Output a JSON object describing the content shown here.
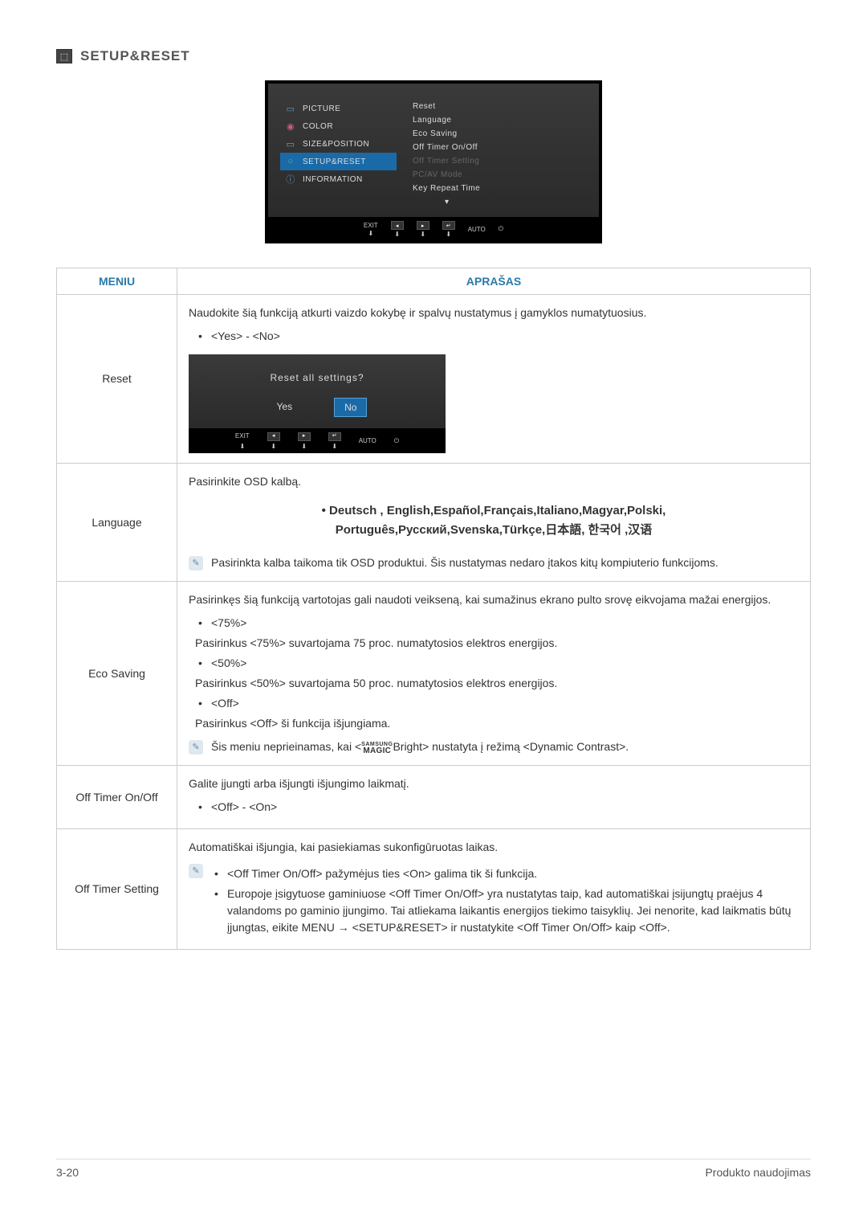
{
  "section": {
    "title": "SETUP&RESET",
    "icon": "⬚"
  },
  "osd": {
    "left": [
      {
        "icon": "▭",
        "icon_color": "#5a9acc",
        "label": "PICTURE"
      },
      {
        "icon": "◉",
        "icon_color": "#cc5a8a",
        "label": "COLOR"
      },
      {
        "icon": "▭",
        "icon_color": "#9a9a9a",
        "label": "SIZE&POSITION"
      },
      {
        "icon": "○",
        "icon_color": "#5ac090",
        "label": "SETUP&RESET",
        "active": true
      },
      {
        "icon": "ⓘ",
        "icon_color": "#5a9acc",
        "label": "INFORMATION"
      }
    ],
    "right": [
      {
        "label": "Reset"
      },
      {
        "label": "Language"
      },
      {
        "label": "Eco Saving"
      },
      {
        "label": "Off Timer On/Off"
      },
      {
        "label": "Off Timer Setting",
        "dim": true
      },
      {
        "label": "PC/AV Mode",
        "dim": true
      },
      {
        "label": "Key Repeat Time"
      },
      {
        "label": "▾",
        "arrow": true
      }
    ],
    "bottom": [
      {
        "top": "EXIT",
        "bot": "⬇"
      },
      {
        "sq": "◂",
        "bot": "⬇"
      },
      {
        "sq": "▸",
        "bot": "⬇"
      },
      {
        "sq": "↵",
        "bot": "⬇"
      },
      {
        "top": "AUTO",
        "bot": " "
      },
      {
        "top": "⏻",
        "bot": " "
      }
    ]
  },
  "table": {
    "headers": {
      "menu": "MENIU",
      "desc": "APRAŠAS"
    },
    "rows": {
      "reset": {
        "menu": "Reset",
        "intro": "Naudokite šią funkciją atkurti vaizdo kokybę ir spalvų nustatymus į gamyklos numatytuosius.",
        "opt": "<Yes> - <No>",
        "dialog": {
          "q": "Reset all settings?",
          "yes": "Yes",
          "no": "No",
          "bottom": [
            {
              "top": "EXIT",
              "bot": "⬇"
            },
            {
              "sq": "◂",
              "bot": "⬇"
            },
            {
              "sq": "▸",
              "bot": "⬇"
            },
            {
              "sq": "↵",
              "bot": "⬇"
            },
            {
              "top": "AUTO",
              "bot": " "
            },
            {
              "top": "⏻",
              "bot": " "
            }
          ]
        }
      },
      "language": {
        "menu": "Language",
        "intro": "Pasirinkite OSD kalbą.",
        "langs_l1": "• Deutsch , English,Español,Français,Italiano,Magyar,Polski,",
        "langs_l2": "Português,Русский,Svenska,Türkçe,日本語, 한국어 ,汉语",
        "note": "Pasirinkta kalba taikoma tik OSD produktui. Šis nustatymas nedaro įtakos kitų kompiuterio funkcijoms."
      },
      "eco": {
        "menu": "Eco Saving",
        "intro": "Pasirinkęs šią funkciją vartotojas gali naudoti veikseną, kai sumažinus ekrano pulto srovę eikvojama mažai energijos.",
        "o1": "<75%>",
        "o1d": "Pasirinkus <75%> suvartojama 75 proc. numatytosios elektros energijos.",
        "o2": "<50%>",
        "o2d": "Pasirinkus <50%> suvartojama 50 proc. numatytosios elektros energijos.",
        "o3": "<Off>",
        "o3d": "Pasirinkus <Off> ši funkcija išjungiama.",
        "note_pre": "Šis meniu neprieinamas, kai <",
        "note_suf": "Bright> nustatyta į režimą <Dynamic Contrast>.",
        "magic_top": "SAMSUNG",
        "magic_bot": "MAGIC"
      },
      "offtimer": {
        "menu": "Off Timer On/Off",
        "intro": "Galite įjungti arba išjungti išjungimo laikmatį.",
        "opt": "<Off> - <On>"
      },
      "offtimerset": {
        "menu": "Off Timer Setting",
        "intro": "Automatiškai išjungia, kai pasiekiamas sukonfigūruotas laikas.",
        "n1": "<Off Timer On/Off> pažymėjus ties <On> galima tik ši funkcija.",
        "n2": "Europoje įsigytuose gaminiuose <Off Timer On/Off> yra nustatytas taip, kad automatiškai įsijungtų praėjus 4 valandoms po gaminio įjungimo. Tai atliekama laikantis energijos tiekimo taisyklių. Jei nenorite, kad laikmatis būtų įjungtas, eikite MENU → <SETUP&RESET> ir nustatykite <Off Timer On/Off> kaip <Off>."
      }
    }
  },
  "footer": {
    "left": "3-20",
    "right": "Produkto naudojimas"
  }
}
